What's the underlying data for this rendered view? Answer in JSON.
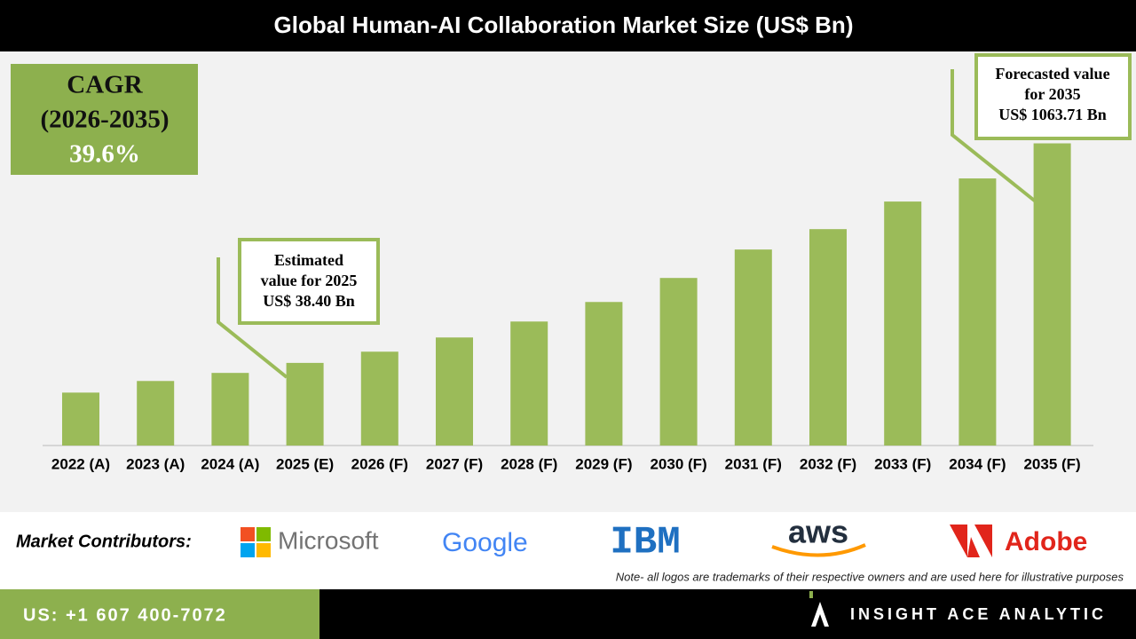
{
  "chart_data": {
    "type": "bar",
    "title": "Global Human-AI Collaboration Market Size (US$ Bn)",
    "categories": [
      "2022 (A)",
      "2023 (A)",
      "2024 (A)",
      "2025 (E)",
      "2026 (F)",
      "2027 (F)",
      "2028 (F)",
      "2029 (F)",
      "2030 (F)",
      "2031 (F)",
      "2032 (F)",
      "2033 (F)",
      "2034 (F)",
      "2035 (F)"
    ],
    "values": [
      24.5,
      29.2,
      33.0,
      38.4,
      45.5,
      56.4,
      71.8,
      96.5,
      138.8,
      213.4,
      290.5,
      441,
      625.6,
      1063.71
    ],
    "color": "#9bbb59",
    "ylim": [
      11,
      1420
    ],
    "log_scale": true,
    "cagr": {
      "label": "CAGR",
      "period": "(2026-2035)",
      "value": "39.6%"
    },
    "annotations": [
      {
        "lines": [
          "Estimated",
          "value for 2025",
          "US$ 38.40 Bn"
        ]
      },
      {
        "lines": [
          "Forecasted value",
          "for 2035",
          "US$ 1063.71 Bn"
        ]
      }
    ]
  },
  "footer": {
    "contributors_label": "Market Contributors:",
    "logos": [
      "Microsoft",
      "Google",
      "IBM",
      "aws",
      "Adobe"
    ],
    "note": "Note- all logos are trademarks of their respective owners and are used here for illustrative purposes",
    "phone": "US: +1 607 400-7072",
    "brand": "INSIGHT ACE ANALYTIC"
  }
}
